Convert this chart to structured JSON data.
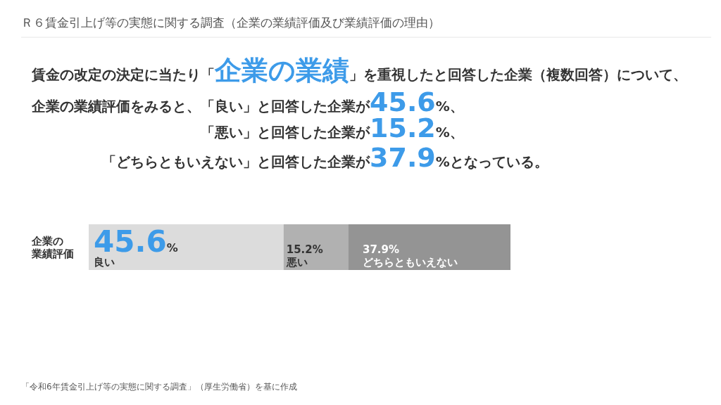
{
  "chart_data": {
    "type": "bar",
    "orientation": "horizontal",
    "stacked": true,
    "title": "Ｒ６賃金引上げ等の実態に関する調査（企業の業績評価及び業績評価の理由）",
    "categories": [
      "企業の業績評価"
    ],
    "series": [
      {
        "name": "良い",
        "color": "#dcdcdc",
        "values": [
          45.6
        ],
        "value_labels": [
          "45.6%"
        ]
      },
      {
        "name": "悪い",
        "color": "#b1b1b1",
        "values": [
          15.2
        ],
        "value_labels": [
          "15.2%"
        ]
      },
      {
        "name": "どちらともいえない",
        "color": "#949494",
        "values": [
          37.9
        ],
        "value_labels": [
          "37.9%"
        ]
      }
    ],
    "tick_labels": "y",
    "annotations": [
      "賃金の改定の決定に当たり「企業の業績」を重視したと回答した企業（複数回答）について、",
      "企業の業績評価をみると、「良い」と回答した企業が45.6%、",
      "「悪い」と回答した企業が15.2%、",
      "「どちらともいえない」と回答した企業が37.9%となっている。",
      "「令和6年賃金引上げ等の実態に関する調査」（厚生労働省）を基に作成"
    ]
  }
}
